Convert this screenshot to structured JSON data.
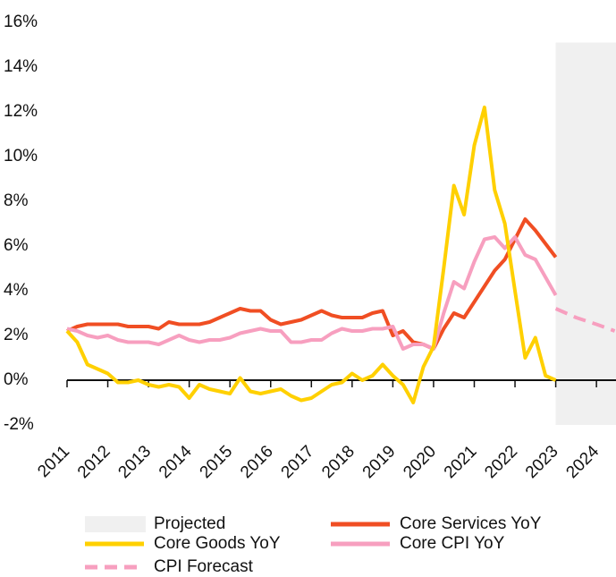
{
  "chart_data": {
    "type": "line",
    "xlim": [
      2011,
      2024.48
    ],
    "xticks": [
      2011,
      2012,
      2013,
      2014,
      2015,
      2016,
      2017,
      2018,
      2019,
      2020,
      2021,
      2022,
      2023,
      2024
    ],
    "ylim": [
      -2,
      16
    ],
    "yticks": [
      {
        "value": -2,
        "label": "-2%"
      },
      {
        "value": 0,
        "label": "0%"
      },
      {
        "value": 2,
        "label": "2%"
      },
      {
        "value": 4,
        "label": "4%"
      },
      {
        "value": 6,
        "label": "6%"
      },
      {
        "value": 8,
        "label": "8%"
      },
      {
        "value": 10,
        "label": "10%"
      },
      {
        "value": 12,
        "label": "12%"
      },
      {
        "value": 14,
        "label": "14%"
      },
      {
        "value": 16,
        "label": "16%"
      }
    ],
    "projection": {
      "name": "Projected",
      "color": "#f0f0f0",
      "x": [
        2023,
        2024.48
      ],
      "top": 15.1
    },
    "x": [
      2011,
      2011.25,
      2011.5,
      2011.75,
      2012,
      2012.25,
      2012.5,
      2012.75,
      2013,
      2013.25,
      2013.5,
      2013.75,
      2014,
      2014.25,
      2014.5,
      2014.75,
      2015,
      2015.25,
      2015.5,
      2015.75,
      2016,
      2016.25,
      2016.5,
      2016.75,
      2017,
      2017.25,
      2017.5,
      2017.75,
      2018,
      2018.25,
      2018.5,
      2018.75,
      2019,
      2019.25,
      2019.5,
      2019.75,
      2020,
      2020.25,
      2020.5,
      2020.75,
      2021,
      2021.25,
      2021.5,
      2021.75,
      2022,
      2022.25,
      2022.5,
      2022.75,
      2023
    ],
    "series": [
      {
        "name": "Core Services YoY",
        "color": "#f04e23",
        "values": [
          2.2,
          2.4,
          2.5,
          2.5,
          2.5,
          2.5,
          2.4,
          2.4,
          2.4,
          2.3,
          2.6,
          2.5,
          2.5,
          2.5,
          2.6,
          2.8,
          3.0,
          3.2,
          3.1,
          3.1,
          2.7,
          2.5,
          2.6,
          2.7,
          2.9,
          3.1,
          2.9,
          2.8,
          2.8,
          2.8,
          3.0,
          3.1,
          2.0,
          2.2,
          1.7,
          1.6,
          1.4,
          2.3,
          3.0,
          2.8,
          3.5,
          4.2,
          4.9,
          5.4,
          6.3,
          7.2,
          6.7,
          6.1,
          5.5
        ]
      },
      {
        "name": "Core Goods YoY",
        "color": "#ffd000",
        "values": [
          2.2,
          1.7,
          0.7,
          0.5,
          0.3,
          -0.1,
          -0.1,
          0.0,
          -0.2,
          -0.3,
          -0.2,
          -0.3,
          -0.8,
          -0.2,
          -0.4,
          -0.5,
          -0.6,
          0.1,
          -0.5,
          -0.6,
          -0.5,
          -0.4,
          -0.7,
          -0.9,
          -0.8,
          -0.5,
          -0.2,
          -0.1,
          0.3,
          0.0,
          0.2,
          0.7,
          0.2,
          -0.2,
          -1.0,
          0.6,
          1.5,
          5.0,
          8.7,
          7.4,
          10.5,
          12.2,
          8.5,
          7.0,
          4.0,
          1.0,
          1.9,
          0.2,
          0.0
        ]
      },
      {
        "name": "Core CPI YoY",
        "color": "#f79fbf",
        "values": [
          2.3,
          2.2,
          2.0,
          1.9,
          2.0,
          1.8,
          1.7,
          1.7,
          1.7,
          1.6,
          1.8,
          2.0,
          1.8,
          1.7,
          1.8,
          1.8,
          1.9,
          2.1,
          2.2,
          2.3,
          2.2,
          2.2,
          1.7,
          1.7,
          1.8,
          1.8,
          2.1,
          2.3,
          2.2,
          2.2,
          2.3,
          2.3,
          2.4,
          1.4,
          1.6,
          1.6,
          1.4,
          3.0,
          4.4,
          4.1,
          5.3,
          6.3,
          6.4,
          5.9,
          6.4,
          5.6,
          5.4,
          4.6,
          3.8
        ]
      },
      {
        "name": "CPI Forecast",
        "color": "#f79fbf",
        "dashed": true,
        "x": [
          2023,
          2023.5,
          2024,
          2024.45
        ],
        "values": [
          3.2,
          2.8,
          2.5,
          2.2
        ]
      }
    ]
  }
}
